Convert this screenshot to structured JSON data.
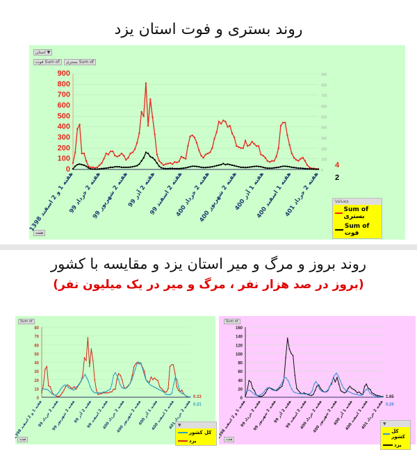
{
  "titles": {
    "main": "روند بستری و فوت استان یزد",
    "second": "روند بروز و مرگ و میر استان یزد و مقایسه با کشور",
    "subtitle": "(بروز در صد هزار نفر ، مرگ و میر در یک میلیون نفر)"
  },
  "colors": {
    "panel_green": "#ccffcc",
    "panel_pink": "#ffccff",
    "red": "#e8261c",
    "black": "#000000",
    "blue": "#2aa0c8",
    "legend_bg": "#ffff00"
  },
  "x_labels": [
    "هفته 1 و 2 اسفند 1398",
    "هفته 2 خرداد 99",
    "هفته 2 شهریور 99",
    "هفته 2 آذر 99",
    "هفته 2 اسفند 99",
    "هفته 2 خرداد 400",
    "هفته 2 شهریور 400",
    "هفته 1 آذر 400",
    "هفته 1 اسفند 400",
    "هفته 2 خرداد 401"
  ],
  "chart_data": [
    {
      "type": "line",
      "ylim": [
        0,
        900
      ],
      "yticks": [
        0,
        100,
        200,
        300,
        400,
        500,
        600,
        700,
        800,
        900
      ],
      "grid": true,
      "legend_position": "bottom-right",
      "legend_title": "Values",
      "filter_buttons": [
        "استان",
        "Sum of فوت",
        "Sum of بستری",
        "هفته"
      ],
      "end_labels": [
        "4",
        "2"
      ],
      "series": [
        {
          "name": "Sum of بستری",
          "color": "#e8261c",
          "values": [
            60,
            160,
            380,
            420,
            150,
            150,
            80,
            30,
            20,
            20,
            15,
            20,
            40,
            60,
            100,
            150,
            140,
            170,
            170,
            130,
            120,
            130,
            150,
            130,
            90,
            110,
            150,
            160,
            190,
            250,
            340,
            540,
            500,
            810,
            410,
            660,
            490,
            330,
            140,
            80,
            60,
            40,
            50,
            55,
            60,
            50,
            70,
            65,
            75,
            120,
            110,
            100,
            220,
            310,
            320,
            300,
            250,
            180,
            130,
            110,
            140,
            150,
            160,
            200,
            290,
            350,
            450,
            430,
            460,
            450,
            400,
            410,
            340,
            300,
            220,
            210,
            200,
            200,
            270,
            220,
            230,
            260,
            240,
            220,
            220,
            140,
            130,
            110,
            80,
            70,
            80,
            80,
            120,
            200,
            410,
            440,
            440,
            320,
            230,
            150,
            110,
            90,
            80,
            100,
            110,
            80,
            40,
            20,
            10,
            10,
            5,
            4
          ]
        },
        {
          "name": "Sum of فوت",
          "color": "#000000",
          "values": [
            5,
            30,
            45,
            50,
            45,
            40,
            30,
            15,
            5,
            3,
            3,
            3,
            5,
            8,
            10,
            12,
            15,
            20,
            20,
            25,
            25,
            25,
            20,
            20,
            20,
            20,
            22,
            25,
            30,
            35,
            50,
            80,
            110,
            160,
            150,
            120,
            110,
            90,
            60,
            30,
            15,
            10,
            8,
            8,
            10,
            10,
            8,
            8,
            8,
            10,
            12,
            15,
            20,
            25,
            30,
            30,
            28,
            25,
            20,
            18,
            18,
            20,
            22,
            25,
            30,
            35,
            40,
            45,
            55,
            45,
            50,
            45,
            40,
            35,
            30,
            25,
            20,
            20,
            18,
            20,
            22,
            25,
            28,
            30,
            28,
            25,
            20,
            15,
            12,
            12,
            12,
            15,
            18,
            20,
            25,
            30,
            30,
            28,
            25,
            20,
            18,
            15,
            12,
            12,
            10,
            8,
            6,
            5,
            4,
            3,
            2,
            2
          ]
        }
      ]
    },
    {
      "type": "line",
      "ylim": [
        0,
        80
      ],
      "yticks": [
        0,
        10,
        20,
        30,
        40,
        50,
        60,
        70,
        80
      ],
      "grid": true,
      "legend_position": "bottom-right",
      "filter_buttons": [
        "Sum of",
        "هفته"
      ],
      "end_labels": [
        "0.33",
        "0.21"
      ],
      "series": [
        {
          "name": "یزد",
          "color": "#d42a1a",
          "values": [
            5,
            14,
            32,
            35,
            13,
            12,
            6,
            3,
            2,
            1,
            1,
            2,
            5,
            8,
            12,
            14,
            13,
            11,
            10,
            12,
            9,
            12,
            15,
            18,
            25,
            45,
            42,
            68,
            35,
            55,
            42,
            20,
            8,
            3,
            4,
            4,
            5,
            5,
            5,
            5,
            6,
            6,
            9,
            9,
            20,
            27,
            25,
            20,
            12,
            10,
            12,
            14,
            17,
            25,
            35,
            38,
            40,
            38,
            39,
            34,
            30,
            20,
            18,
            17,
            23,
            20,
            22,
            20,
            19,
            12,
            10,
            8,
            6,
            6,
            10,
            35,
            37,
            37,
            27,
            12,
            8,
            6,
            8,
            4,
            2,
            1,
            0.5,
            0.33
          ]
        },
        {
          "name": "کل کشور",
          "color": "#2a9cc0",
          "values": [
            8,
            10,
            9,
            9,
            8,
            6,
            4,
            3,
            2,
            3,
            5,
            8,
            11,
            13,
            14,
            13,
            11,
            10,
            9,
            8,
            10,
            12,
            14,
            17,
            20,
            23,
            26,
            22,
            18,
            12,
            8,
            6,
            5,
            5,
            5,
            5,
            5,
            6,
            6,
            7,
            8,
            9,
            15,
            25,
            28,
            25,
            20,
            14,
            11,
            10,
            10,
            11,
            13,
            16,
            20,
            26,
            32,
            38,
            40,
            39,
            35,
            28,
            22,
            18,
            16,
            14,
            13,
            12,
            11,
            10,
            9,
            8,
            7,
            6,
            4,
            3,
            3,
            3,
            5,
            15,
            23,
            20,
            12,
            6,
            4,
            4,
            2,
            1,
            0.5,
            0.21
          ]
        }
      ]
    },
    {
      "type": "line",
      "ylim": [
        0,
        160
      ],
      "yticks": [
        0,
        20,
        40,
        60,
        80,
        100,
        120,
        140,
        160
      ],
      "grid": true,
      "legend_position": "bottom-right",
      "filter_buttons": [
        "Sum of",
        "هفته"
      ],
      "end_labels": [
        "1.65",
        "0.26"
      ],
      "series": [
        {
          "name": "یزد",
          "color": "#111111",
          "values": [
            2,
            15,
            38,
            35,
            20,
            15,
            5,
            3,
            2,
            2,
            5,
            10,
            18,
            22,
            20,
            18,
            16,
            15,
            18,
            22,
            25,
            40,
            90,
            135,
            110,
            100,
            95,
            50,
            20,
            15,
            10,
            8,
            10,
            8,
            6,
            5,
            4,
            6,
            15,
            25,
            28,
            20,
            15,
            12,
            12,
            15,
            25,
            30,
            45,
            35,
            45,
            30,
            15,
            12,
            10,
            12,
            20,
            25,
            20,
            18,
            15,
            10,
            12,
            8,
            6,
            25,
            30,
            20,
            18,
            10,
            8,
            5,
            4,
            3,
            2,
            1.65
          ]
        },
        {
          "name": "کل کشور",
          "color": "#3a8fd8",
          "values": [
            10,
            15,
            16,
            14,
            10,
            6,
            5,
            4,
            5,
            8,
            12,
            18,
            22,
            21,
            18,
            16,
            15,
            18,
            22,
            28,
            35,
            45,
            44,
            38,
            28,
            18,
            12,
            10,
            9,
            8,
            8,
            8,
            7,
            7,
            8,
            9,
            15,
            30,
            36,
            28,
            18,
            14,
            12,
            12,
            15,
            20,
            30,
            40,
            50,
            55,
            48,
            38,
            28,
            20,
            16,
            14,
            12,
            10,
            8,
            7,
            6,
            5,
            4,
            5,
            12,
            18,
            17,
            10,
            6,
            4,
            3,
            2,
            1,
            0.5,
            0.26
          ]
        }
      ]
    }
  ]
}
